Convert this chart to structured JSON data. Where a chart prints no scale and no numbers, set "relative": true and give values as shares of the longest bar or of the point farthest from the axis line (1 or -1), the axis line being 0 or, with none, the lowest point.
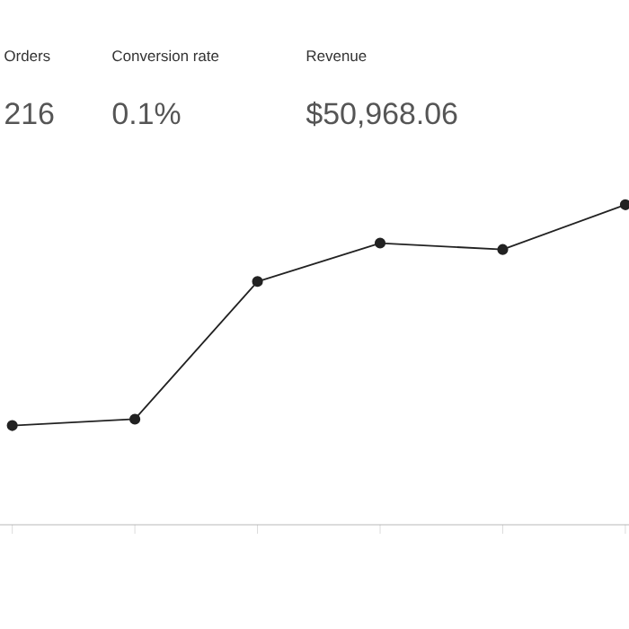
{
  "chart_data": {
    "type": "line",
    "relative": true,
    "categories": [
      null,
      null,
      null,
      null,
      null,
      null
    ],
    "series": [
      {
        "color": "#222222",
        "values": [
          0.31,
          0.33,
          0.76,
          0.88,
          0.86,
          1.0
        ]
      }
    ],
    "marker": "circle",
    "line_style": "solid",
    "annotations": [
      "Orders",
      "216",
      "Conversion rate",
      "0.1%",
      "Revenue",
      "$50,968.06"
    ]
  }
}
